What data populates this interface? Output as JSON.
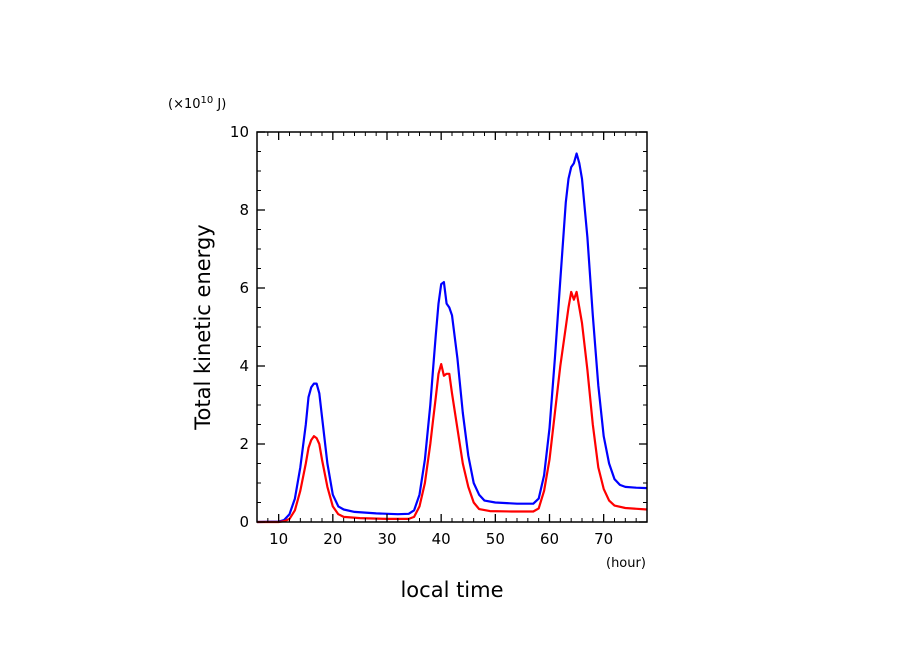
{
  "chart_data": {
    "type": "line",
    "xlabel": "local time",
    "x_unit": "(hour)",
    "ylabel": "Total kinetic energy",
    "y_unit": "(×10¹⁰ J)",
    "y_unit_parts": {
      "prefix": "(×10",
      "exp": "10",
      "suffix": " J)"
    },
    "xlim": [
      6,
      78
    ],
    "ylim": [
      0,
      10
    ],
    "x_ticks": [
      10,
      20,
      30,
      40,
      50,
      60,
      70
    ],
    "y_ticks": [
      0,
      2,
      4,
      6,
      8,
      10
    ],
    "grid": false,
    "legend": "none",
    "series": [
      {
        "color": "#0000ff",
        "points": [
          [
            6,
            0.0
          ],
          [
            10,
            0.01
          ],
          [
            11,
            0.05
          ],
          [
            12,
            0.2
          ],
          [
            13,
            0.6
          ],
          [
            14,
            1.4
          ],
          [
            15,
            2.5
          ],
          [
            15.5,
            3.2
          ],
          [
            16,
            3.45
          ],
          [
            16.5,
            3.55
          ],
          [
            17,
            3.55
          ],
          [
            17.5,
            3.3
          ],
          [
            18,
            2.7
          ],
          [
            19,
            1.5
          ],
          [
            20,
            0.7
          ],
          [
            21,
            0.4
          ],
          [
            22,
            0.32
          ],
          [
            24,
            0.26
          ],
          [
            28,
            0.22
          ],
          [
            32,
            0.2
          ],
          [
            34,
            0.21
          ],
          [
            35,
            0.3
          ],
          [
            36,
            0.7
          ],
          [
            37,
            1.6
          ],
          [
            38,
            3.0
          ],
          [
            38.5,
            3.9
          ],
          [
            39,
            4.8
          ],
          [
            39.5,
            5.6
          ],
          [
            40,
            6.1
          ],
          [
            40.5,
            6.15
          ],
          [
            41,
            5.6
          ],
          [
            41.5,
            5.5
          ],
          [
            42,
            5.3
          ],
          [
            43,
            4.2
          ],
          [
            44,
            2.8
          ],
          [
            45,
            1.7
          ],
          [
            46,
            1.0
          ],
          [
            47,
            0.7
          ],
          [
            48,
            0.55
          ],
          [
            50,
            0.5
          ],
          [
            54,
            0.47
          ],
          [
            57,
            0.47
          ],
          [
            58,
            0.6
          ],
          [
            59,
            1.2
          ],
          [
            60,
            2.4
          ],
          [
            61,
            4.2
          ],
          [
            62,
            6.2
          ],
          [
            63,
            8.2
          ],
          [
            63.5,
            8.8
          ],
          [
            64,
            9.1
          ],
          [
            64.5,
            9.2
          ],
          [
            65,
            9.45
          ],
          [
            65.5,
            9.2
          ],
          [
            66,
            8.8
          ],
          [
            67,
            7.3
          ],
          [
            68,
            5.3
          ],
          [
            69,
            3.5
          ],
          [
            70,
            2.2
          ],
          [
            71,
            1.5
          ],
          [
            72,
            1.1
          ],
          [
            73,
            0.95
          ],
          [
            74,
            0.9
          ],
          [
            76,
            0.88
          ],
          [
            78,
            0.87
          ]
        ]
      },
      {
        "color": "#ff0000",
        "points": [
          [
            6,
            0.0
          ],
          [
            10,
            0.0
          ],
          [
            11,
            0.02
          ],
          [
            12,
            0.08
          ],
          [
            13,
            0.3
          ],
          [
            14,
            0.8
          ],
          [
            15,
            1.5
          ],
          [
            15.5,
            1.9
          ],
          [
            16,
            2.1
          ],
          [
            16.5,
            2.2
          ],
          [
            17,
            2.15
          ],
          [
            17.5,
            2.0
          ],
          [
            18,
            1.6
          ],
          [
            19,
            0.9
          ],
          [
            20,
            0.4
          ],
          [
            21,
            0.2
          ],
          [
            22,
            0.13
          ],
          [
            25,
            0.1
          ],
          [
            30,
            0.08
          ],
          [
            34,
            0.08
          ],
          [
            35,
            0.13
          ],
          [
            36,
            0.4
          ],
          [
            37,
            1.0
          ],
          [
            38,
            2.0
          ],
          [
            38.5,
            2.6
          ],
          [
            39,
            3.2
          ],
          [
            39.5,
            3.8
          ],
          [
            40,
            4.05
          ],
          [
            40.5,
            3.75
          ],
          [
            41,
            3.8
          ],
          [
            41.5,
            3.8
          ],
          [
            42,
            3.3
          ],
          [
            43,
            2.4
          ],
          [
            44,
            1.5
          ],
          [
            45,
            0.9
          ],
          [
            46,
            0.5
          ],
          [
            47,
            0.33
          ],
          [
            49,
            0.28
          ],
          [
            53,
            0.27
          ],
          [
            57,
            0.27
          ],
          [
            58,
            0.35
          ],
          [
            59,
            0.8
          ],
          [
            60,
            1.6
          ],
          [
            61,
            2.8
          ],
          [
            62,
            4.0
          ],
          [
            63,
            5.0
          ],
          [
            63.5,
            5.5
          ],
          [
            64,
            5.9
          ],
          [
            64.5,
            5.7
          ],
          [
            65,
            5.9
          ],
          [
            65.5,
            5.5
          ],
          [
            66,
            5.1
          ],
          [
            67,
            3.9
          ],
          [
            68,
            2.5
          ],
          [
            69,
            1.4
          ],
          [
            70,
            0.85
          ],
          [
            71,
            0.55
          ],
          [
            72,
            0.42
          ],
          [
            74,
            0.36
          ],
          [
            78,
            0.32
          ]
        ]
      }
    ]
  }
}
